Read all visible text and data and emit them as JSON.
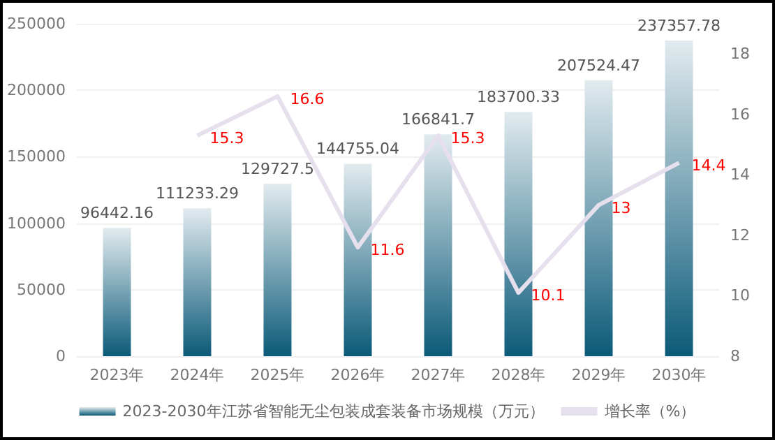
{
  "chart_data": {
    "type": "bar",
    "categories": [
      "2023年",
      "2024年",
      "2025年",
      "2026年",
      "2027年",
      "2028年",
      "2029年",
      "2030年"
    ],
    "series": [
      {
        "name": "2023-2030年江苏省智能无尘包装成套装备市场规模（万元）",
        "color": "#0b5a78",
        "values": [
          96442.16,
          111233.29,
          129727.5,
          144755.04,
          166841.7,
          183700.33,
          207524.47,
          237357.78
        ]
      },
      {
        "name": "增长率（%）",
        "type": "line",
        "axis": "y2",
        "color": "#e6e0ee",
        "values": [
          null,
          15.3,
          16.6,
          11.6,
          15.3,
          10.1,
          13,
          14.4
        ]
      }
    ],
    "ylim": [
      0,
      250000
    ],
    "yticks": [
      0,
      50000,
      100000,
      150000,
      200000,
      250000
    ],
    "y2lim": [
      8,
      19
    ],
    "y2ticks": [
      8,
      10,
      12,
      14,
      16,
      18
    ],
    "data_labels": true,
    "grid": "y",
    "legend": "bottom",
    "marker": "none"
  }
}
